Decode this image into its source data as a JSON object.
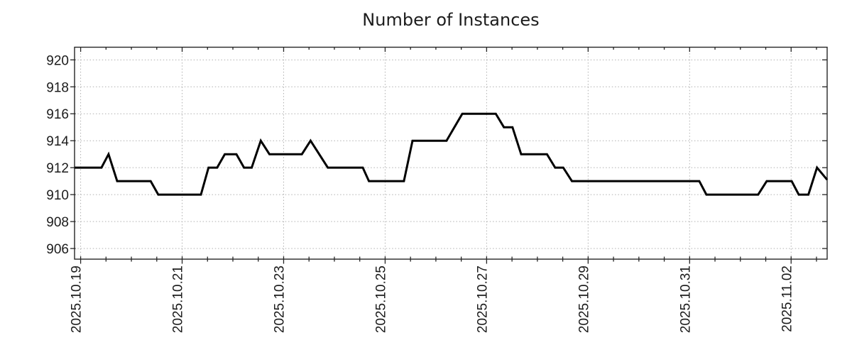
{
  "chart_data": {
    "type": "line",
    "title": "Number of Instances",
    "x_axis": {
      "x_unit": "days_since_2025.10.19",
      "tick_days": [
        0,
        2,
        4,
        6,
        8,
        10,
        12,
        14
      ],
      "tick_labels": [
        "2025.10.19",
        "2025.10.21",
        "2025.10.23",
        "2025.10.25",
        "2025.10.27",
        "2025.10.29",
        "2025.10.31",
        "2025.11.02"
      ],
      "tick_label_rotation_deg": 90,
      "minor_tick_interval_days": 0.5,
      "xlim_days": [
        -0.12,
        14.71
      ]
    },
    "y_axis": {
      "ticks": [
        906,
        908,
        910,
        912,
        914,
        916,
        918,
        920
      ],
      "ylim": [
        905.21,
        920.94
      ]
    },
    "grid": {
      "show": true,
      "style": "dotted",
      "color": "#b0b0b0"
    },
    "legend": {
      "show": false
    },
    "series": [
      {
        "name": "Number of Instances",
        "color": "#000000",
        "line_width": 3,
        "points_day_value": [
          [
            -0.12,
            912
          ],
          [
            0.41,
            912
          ],
          [
            0.55,
            913
          ],
          [
            0.72,
            911
          ],
          [
            1.38,
            911
          ],
          [
            1.53,
            910
          ],
          [
            2.37,
            910
          ],
          [
            2.52,
            912
          ],
          [
            2.69,
            912
          ],
          [
            2.84,
            913
          ],
          [
            3.07,
            913
          ],
          [
            3.22,
            912
          ],
          [
            3.37,
            912
          ],
          [
            3.55,
            914
          ],
          [
            3.72,
            913
          ],
          [
            4.36,
            913
          ],
          [
            4.53,
            914
          ],
          [
            4.87,
            912
          ],
          [
            5.56,
            912
          ],
          [
            5.68,
            911
          ],
          [
            6.37,
            911
          ],
          [
            6.54,
            914
          ],
          [
            7.21,
            914
          ],
          [
            7.52,
            916
          ],
          [
            8.18,
            916
          ],
          [
            8.34,
            915
          ],
          [
            8.51,
            915
          ],
          [
            8.68,
            913
          ],
          [
            9.19,
            913
          ],
          [
            9.35,
            912
          ],
          [
            9.51,
            912
          ],
          [
            9.68,
            911
          ],
          [
            12.19,
            911
          ],
          [
            12.33,
            910
          ],
          [
            13.35,
            910
          ],
          [
            13.52,
            911
          ],
          [
            14.01,
            911
          ],
          [
            14.15,
            910
          ],
          [
            14.34,
            910
          ],
          [
            14.51,
            912
          ],
          [
            14.71,
            911.1
          ]
        ]
      }
    ],
    "colors": {
      "frame": "#262626",
      "text": "#1c1c1c",
      "grid": "#b0b0b0",
      "line": "#000000"
    }
  }
}
